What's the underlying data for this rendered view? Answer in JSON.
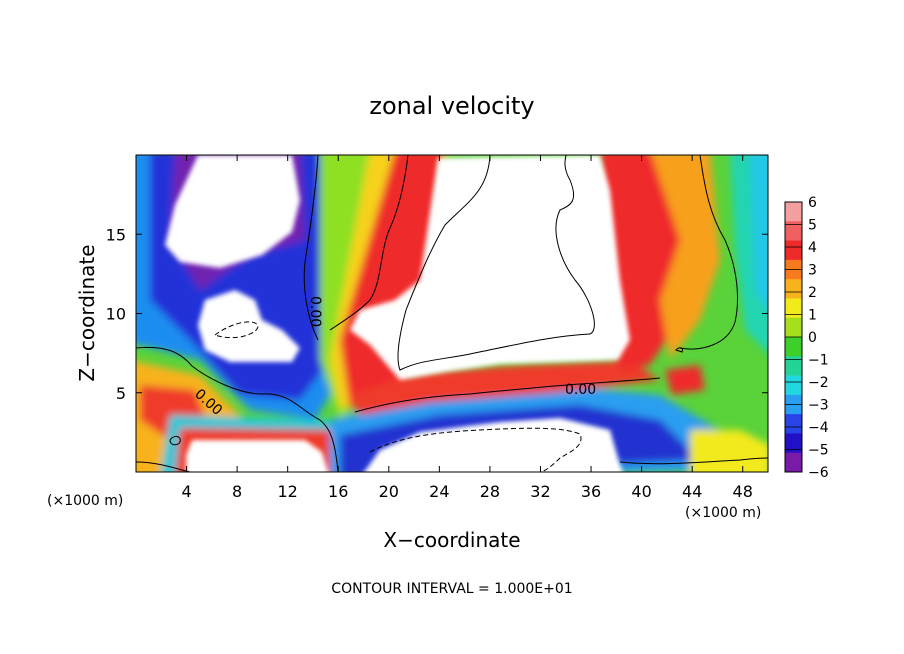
{
  "chart_data": {
    "type": "heatmap",
    "title": "zonal velocity",
    "xlabel": "X−coordinate",
    "ylabel": "Z−coordinate",
    "x_unit": "(×1000 m)",
    "z_unit": "(×1000 m)",
    "xlim": [
      0,
      50
    ],
    "ylim": [
      0,
      20
    ],
    "x_ticks": [
      4,
      8,
      12,
      16,
      20,
      24,
      28,
      32,
      36,
      40,
      44,
      48
    ],
    "y_ticks": [
      5,
      10,
      15
    ],
    "colorbar": {
      "levels": [
        6,
        5,
        4,
        3,
        2,
        1,
        0,
        -1,
        -2,
        -3,
        -4,
        -5,
        -6
      ],
      "labels": [
        "6",
        "5",
        "4",
        "3",
        "2",
        "1",
        "0",
        "−1",
        "−2",
        "−3",
        "−4",
        "−5",
        "−6"
      ],
      "colors": [
        "#f4a0a0",
        "#f06060",
        "#ef2a2a",
        "#f77a1e",
        "#f7b21c",
        "#f2ea1a",
        "#a6e01c",
        "#3fcf2a",
        "#24d496",
        "#22d8e0",
        "#2a9ef0",
        "#2844e8",
        "#2210c8",
        "#7a1aa8"
      ]
    },
    "contour_labels": [
      "0.00",
      "0.00",
      "0.00"
    ],
    "footer": "CONTOUR INTERVAL = 1.000E+01",
    "grid": false
  }
}
